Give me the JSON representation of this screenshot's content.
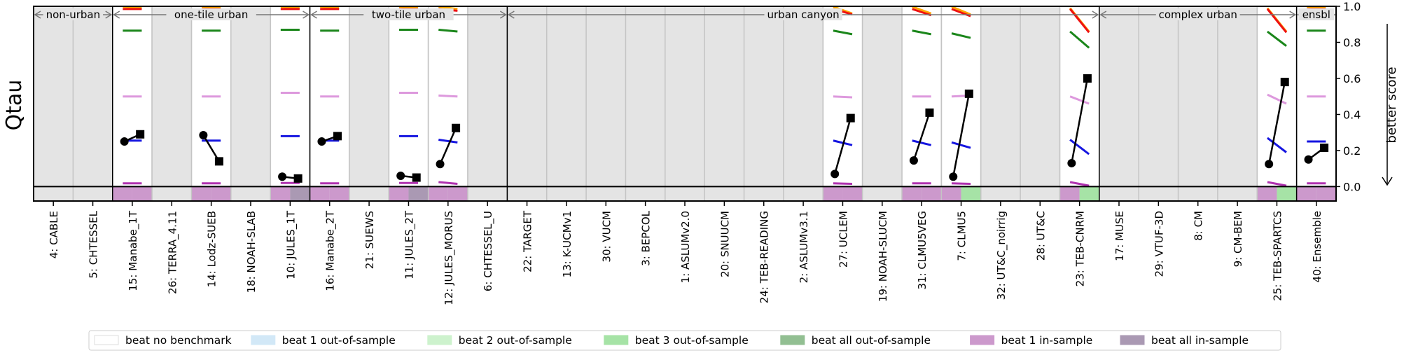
{
  "chart_data": {
    "type": "scatter",
    "ylabel": "Qtau",
    "ylabel_right": "better score",
    "ylim": [
      -0.08,
      1.0
    ],
    "yticks": [
      "0.0",
      "0.2",
      "0.4",
      "0.6",
      "0.8",
      "1.0"
    ],
    "yticks_values": [
      0.0,
      0.2,
      0.4,
      0.6,
      0.8,
      1.0
    ],
    "categories": [
      "4: CABLE",
      "5: CHTESSEL",
      "15: Manabe_1T",
      "26: TERRA_4.11",
      "14: Lodz-SUEB",
      "18: NOAH-SLAB",
      "10: JULES_1T",
      "16: Manabe_2T",
      "21: SUEWS",
      "11: JULES_2T",
      "12: JULES_MORUS",
      "6: CHTESSEL_U",
      "22: TARGET",
      "13: K-UCMv1",
      "30: VUCM",
      "3: BEPCOL",
      "1: ASLUMv2.0",
      "20: SNUUCM",
      "24: TEB-READING",
      "2: ASLUMv3.1",
      "27: UCLEM",
      "19: NOAH-SLUCM",
      "31: CLMU5VEG",
      "7: CLMU5",
      "32: UT&C_noirrig",
      "28: UT&C",
      "23: TEB-CNRM",
      "17: MUSE",
      "29: VTUF-3D",
      "8: CM",
      "9: CM-BEM",
      "25: TEB-SPARTCS",
      "40: Ensemble"
    ],
    "groups": [
      {
        "label": "non-urban",
        "first": 0,
        "last": 1
      },
      {
        "label": "one-tile urban",
        "first": 2,
        "last": 6
      },
      {
        "label": "two-tile urban",
        "first": 7,
        "last": 11
      },
      {
        "label": "urban canyon",
        "first": 12,
        "last": 26
      },
      {
        "label": "complex urban",
        "first": 27,
        "last": 31
      },
      {
        "label": "ensbl",
        "first": 32,
        "last": 32
      }
    ],
    "series": [
      {
        "marker": "circle",
        "values": [
          null,
          null,
          0.25,
          null,
          0.285,
          null,
          0.055,
          0.25,
          null,
          0.06,
          0.125,
          null,
          null,
          null,
          null,
          null,
          null,
          null,
          null,
          null,
          0.07,
          null,
          0.145,
          0.055,
          null,
          null,
          0.13,
          null,
          null,
          null,
          null,
          0.125,
          0.15
        ]
      },
      {
        "marker": "square",
        "values": [
          null,
          null,
          0.29,
          null,
          0.14,
          null,
          0.045,
          0.28,
          null,
          0.05,
          0.325,
          null,
          null,
          null,
          null,
          null,
          null,
          null,
          null,
          null,
          0.38,
          null,
          0.41,
          0.515,
          null,
          null,
          0.6,
          null,
          null,
          null,
          null,
          0.58,
          0.215
        ]
      }
    ],
    "benchmarks": [
      {
        "color": "#1515e0",
        "values": [
          null,
          null,
          [
            0.255,
            0.255
          ],
          null,
          [
            0.255,
            0.255
          ],
          null,
          [
            0.28,
            0.28
          ],
          [
            0.255,
            0.255
          ],
          null,
          [
            0.28,
            0.28
          ],
          [
            0.26,
            0.245
          ],
          null,
          null,
          null,
          null,
          null,
          null,
          null,
          null,
          null,
          [
            0.255,
            0.23
          ],
          null,
          [
            0.255,
            0.23
          ],
          [
            0.245,
            0.215
          ],
          null,
          null,
          [
            0.26,
            0.18
          ],
          null,
          null,
          null,
          null,
          [
            0.27,
            0.19
          ],
          [
            0.25,
            0.25
          ]
        ]
      },
      {
        "color": "#dd99dd",
        "values": [
          null,
          null,
          [
            0.5,
            0.5
          ],
          null,
          [
            0.5,
            0.5
          ],
          null,
          [
            0.52,
            0.52
          ],
          [
            0.5,
            0.5
          ],
          null,
          [
            0.52,
            0.52
          ],
          [
            0.505,
            0.5
          ],
          null,
          null,
          null,
          null,
          null,
          null,
          null,
          null,
          null,
          [
            0.5,
            0.495
          ],
          null,
          [
            0.5,
            0.5
          ],
          [
            0.5,
            0.505
          ],
          null,
          null,
          [
            0.5,
            0.46
          ],
          null,
          null,
          null,
          null,
          [
            0.51,
            0.46
          ],
          [
            0.5,
            0.5
          ]
        ]
      },
      {
        "color": "#1a861a",
        "values": [
          null,
          null,
          [
            0.865,
            0.865
          ],
          null,
          [
            0.865,
            0.865
          ],
          null,
          [
            0.87,
            0.87
          ],
          [
            0.865,
            0.865
          ],
          null,
          [
            0.87,
            0.87
          ],
          [
            0.87,
            0.86
          ],
          null,
          null,
          null,
          null,
          null,
          null,
          null,
          null,
          null,
          [
            0.865,
            0.845
          ],
          null,
          [
            0.865,
            0.845
          ],
          [
            0.85,
            0.825
          ],
          null,
          null,
          [
            0.86,
            0.77
          ],
          null,
          null,
          null,
          null,
          [
            0.86,
            0.78
          ],
          [
            0.865,
            0.865
          ]
        ]
      },
      {
        "color": "#b032b0",
        "values": [
          null,
          null,
          [
            0.018,
            0.018
          ],
          null,
          [
            0.018,
            0.018
          ],
          null,
          [
            0.02,
            0.02
          ],
          [
            0.018,
            0.018
          ],
          null,
          [
            0.02,
            0.02
          ],
          [
            0.025,
            0.015
          ],
          null,
          null,
          null,
          null,
          null,
          null,
          null,
          null,
          null,
          [
            0.018,
            0.015
          ],
          null,
          [
            0.018,
            0.018
          ],
          [
            0.018,
            0.015
          ],
          null,
          null,
          [
            0.025,
            0.005
          ],
          null,
          null,
          null,
          null,
          [
            0.025,
            0.005
          ],
          [
            0.018,
            0.018
          ]
        ]
      },
      {
        "color": "#ffa500",
        "values": [
          null,
          null,
          [
            0.998,
            0.99
          ],
          null,
          [
            0.998,
            0.99
          ],
          null,
          [
            0.998,
            0.99
          ],
          [
            0.998,
            0.99
          ],
          null,
          [
            0.998,
            0.99
          ],
          [
            0.998,
            0.985
          ],
          null,
          null,
          null,
          null,
          null,
          null,
          null,
          null,
          null,
          [
            0.998,
            0.96
          ],
          null,
          [
            0.998,
            0.96
          ],
          [
            0.998,
            0.955
          ],
          null,
          null,
          [
            0.99,
            0.86
          ],
          null,
          null,
          null,
          null,
          [
            0.99,
            0.86
          ],
          [
            0.998,
            0.99
          ]
        ]
      },
      {
        "color": "#ee1111",
        "values": [
          null,
          null,
          [
            0.985,
            0.985
          ],
          null,
          [
            0.985,
            0.985
          ],
          null,
          [
            0.985,
            0.985
          ],
          [
            0.985,
            0.985
          ],
          null,
          [
            0.985,
            0.985
          ],
          [
            0.985,
            0.975
          ],
          null,
          null,
          null,
          null,
          null,
          null,
          null,
          null,
          null,
          [
            0.985,
            0.955
          ],
          null,
          [
            0.985,
            0.95
          ],
          [
            0.985,
            0.945
          ],
          null,
          null,
          [
            0.985,
            0.855
          ],
          null,
          null,
          null,
          null,
          [
            0.985,
            0.855
          ],
          [
            0.985,
            0.985
          ]
        ]
      }
    ],
    "white_columns": [
      2,
      4,
      6,
      7,
      9,
      10,
      20,
      22,
      23,
      26,
      31,
      32
    ],
    "bottom_strip": [
      {
        "index": 2,
        "left": "beat 1 in-sample",
        "right": "beat 1 in-sample"
      },
      {
        "index": 4,
        "left": "beat 1 in-sample",
        "right": "beat 1 in-sample"
      },
      {
        "index": 6,
        "left": "beat 1 in-sample",
        "right": "beat all in-sample"
      },
      {
        "index": 7,
        "left": "beat 1 in-sample",
        "right": "beat 1 in-sample"
      },
      {
        "index": 9,
        "left": "beat 1 in-sample",
        "right": "beat all in-sample"
      },
      {
        "index": 10,
        "left": "beat 1 in-sample",
        "right": "beat 1 in-sample"
      },
      {
        "index": 20,
        "left": "beat 1 in-sample",
        "right": "beat 1 in-sample"
      },
      {
        "index": 22,
        "left": "beat 1 in-sample",
        "right": "beat 1 in-sample"
      },
      {
        "index": 23,
        "left": "beat 1 in-sample",
        "right": "beat 3 out-of-sample"
      },
      {
        "index": 26,
        "left": "beat 1 in-sample",
        "right": "beat 3 out-of-sample"
      },
      {
        "index": 31,
        "left": "beat 1 in-sample",
        "right": "beat 3 out-of-sample"
      },
      {
        "index": 32,
        "left": "beat 1 in-sample",
        "right": "beat 1 in-sample"
      }
    ],
    "legend": [
      {
        "label": "beat no benchmark",
        "color": "#ffffff"
      },
      {
        "label": "beat 1 out-of-sample",
        "color": "#d2e8f7"
      },
      {
        "label": "beat 2 out-of-sample",
        "color": "#cdf2cd"
      },
      {
        "label": "beat 3 out-of-sample",
        "color": "#a6e3a6"
      },
      {
        "label": "beat all out-of-sample",
        "color": "#92bf92"
      },
      {
        "label": "beat 1 in-sample",
        "color": "#cc99cc"
      },
      {
        "label": "beat all in-sample",
        "color": "#aa99b3"
      }
    ],
    "legend_placement": "bottom"
  }
}
